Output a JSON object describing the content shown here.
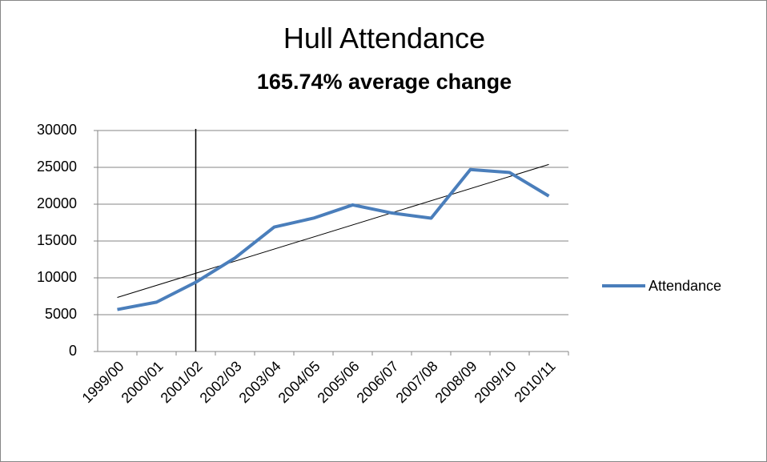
{
  "chart_data": {
    "type": "line",
    "title": "Hull Attendance",
    "subtitle": "165.74% average change",
    "categories": [
      "1999/00",
      "2000/01",
      "2001/02",
      "2002/03",
      "2003/04",
      "2004/05",
      "2005/06",
      "2006/07",
      "2007/08",
      "2008/09",
      "2009/10",
      "2010/11"
    ],
    "series": [
      {
        "name": "Attendance",
        "color": "#4a7ebb",
        "values": [
          5700,
          6700,
          9400,
          12700,
          16900,
          18100,
          19900,
          18800,
          18100,
          24700,
          24300,
          21100
        ]
      }
    ],
    "ylim": [
      0,
      30000
    ],
    "yticks": [
      0,
      5000,
      10000,
      15000,
      20000,
      25000,
      30000
    ],
    "grid": true,
    "trendline": true,
    "legend": "right"
  }
}
